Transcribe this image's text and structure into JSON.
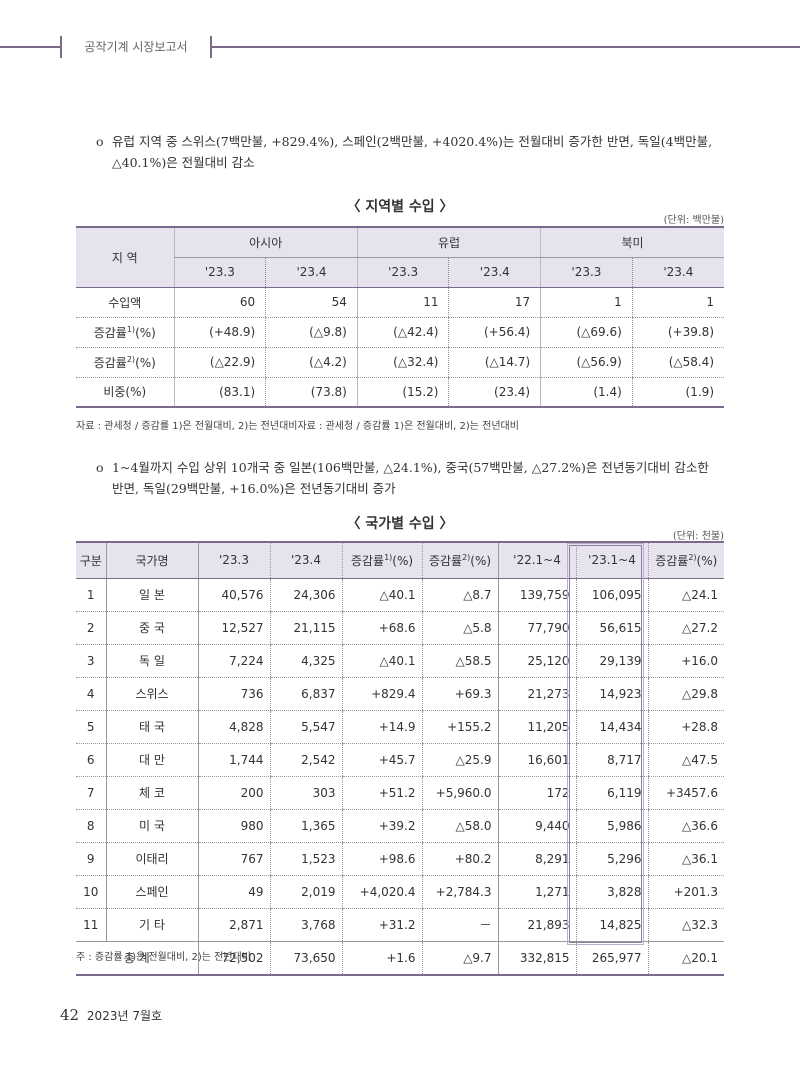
{
  "header": {
    "title": "공작기계 시장보고서"
  },
  "bullets": {
    "b1": "유럽 지역 중 스위스(7백만불, +829.4%), 스페인(2백만불, +4020.4%)는 전월대비 증가한 반면, 독일(4백만불, △40.1%)은 전월대비 감소",
    "b2": "1~4월까지 수입 상위 10개국 중 일본(106백만불, △24.1%), 중국(57백만불, △27.2%)은 전년동기대비 감소한 반면, 독일(29백만불, +16.0%)은 전년동기대비 증가",
    "mark": "o"
  },
  "region_table": {
    "title": "〈 지역별 수입 〉",
    "unit": "(단위: 백만불)",
    "corner": "지 역",
    "groups": [
      "아시아",
      "유럽",
      "북미"
    ],
    "periods": [
      "'23.3",
      "'23.4",
      "'23.3",
      "'23.4",
      "'23.3",
      "'23.4"
    ],
    "rows": [
      {
        "label": "수입액",
        "sup": "",
        "suffix": "",
        "values": [
          "60",
          "54",
          "11",
          "17",
          "1",
          "1"
        ]
      },
      {
        "label": "증감률",
        "sup": "1)",
        "suffix": "(%)",
        "values": [
          "(+48.9)",
          "(△9.8)",
          "(△42.4)",
          "(+56.4)",
          "(△69.6)",
          "(+39.8)"
        ]
      },
      {
        "label": "증감률",
        "sup": "2)",
        "suffix": "(%)",
        "values": [
          "(△22.9)",
          "(△4.2)",
          "(△32.4)",
          "(△14.7)",
          "(△56.9)",
          "(△58.4)"
        ]
      },
      {
        "label": "비중(%)",
        "sup": "",
        "suffix": "",
        "values": [
          "(83.1)",
          "(73.8)",
          "(15.2)",
          "(23.4)",
          "(1.4)",
          "(1.9)"
        ]
      }
    ],
    "source": "자료 : 관세청 / 증감률 1)은 전월대비, 2)는 전년대비자료 : 관세청 / 증감률 1)은 전월대비, 2)는 전년대비"
  },
  "country_table": {
    "title": "〈 국가별 수입 〉",
    "unit": "(단위: 천불)",
    "headers": {
      "rank": "구분",
      "country": "국가명",
      "m3": "'23.3",
      "m4": "'23.4",
      "chg1": "증감률",
      "chg1_sup": "1)",
      "chg1_suffix": "(%)",
      "chg2": "증감률",
      "chg2_sup": "2)",
      "chg2_suffix": "(%)",
      "ytd22": "'22.1~4",
      "ytd23": "'23.1~4",
      "chg3": "증감률",
      "chg3_sup": "2)",
      "chg3_suffix": "(%)"
    },
    "rows": [
      {
        "rank": "1",
        "country": "일 본",
        "m3": "40,576",
        "m4": "24,306",
        "chg1": "△40.1",
        "chg2": "△8.7",
        "ytd22": "139,759",
        "ytd23": "106,095",
        "chg3": "△24.1"
      },
      {
        "rank": "2",
        "country": "중 국",
        "m3": "12,527",
        "m4": "21,115",
        "chg1": "+68.6",
        "chg2": "△5.8",
        "ytd22": "77,790",
        "ytd23": "56,615",
        "chg3": "△27.2"
      },
      {
        "rank": "3",
        "country": "독 일",
        "m3": "7,224",
        "m4": "4,325",
        "chg1": "△40.1",
        "chg2": "△58.5",
        "ytd22": "25,120",
        "ytd23": "29,139",
        "chg3": "+16.0"
      },
      {
        "rank": "4",
        "country": "스위스",
        "m3": "736",
        "m4": "6,837",
        "chg1": "+829.4",
        "chg2": "+69.3",
        "ytd22": "21,273",
        "ytd23": "14,923",
        "chg3": "△29.8"
      },
      {
        "rank": "5",
        "country": "태 국",
        "m3": "4,828",
        "m4": "5,547",
        "chg1": "+14.9",
        "chg2": "+155.2",
        "ytd22": "11,205",
        "ytd23": "14,434",
        "chg3": "+28.8"
      },
      {
        "rank": "6",
        "country": "대 만",
        "m3": "1,744",
        "m4": "2,542",
        "chg1": "+45.7",
        "chg2": "△25.9",
        "ytd22": "16,601",
        "ytd23": "8,717",
        "chg3": "△47.5"
      },
      {
        "rank": "7",
        "country": "체 코",
        "m3": "200",
        "m4": "303",
        "chg1": "+51.2",
        "chg2": "+5,960.0",
        "ytd22": "172",
        "ytd23": "6,119",
        "chg3": "+3457.6"
      },
      {
        "rank": "8",
        "country": "미 국",
        "m3": "980",
        "m4": "1,365",
        "chg1": "+39.2",
        "chg2": "△58.0",
        "ytd22": "9,440",
        "ytd23": "5,986",
        "chg3": "△36.6"
      },
      {
        "rank": "9",
        "country": "이태리",
        "m3": "767",
        "m4": "1,523",
        "chg1": "+98.6",
        "chg2": "+80.2",
        "ytd22": "8,291",
        "ytd23": "5,296",
        "chg3": "△36.1"
      },
      {
        "rank": "10",
        "country": "스페인",
        "m3": "49",
        "m4": "2,019",
        "chg1": "+4,020.4",
        "chg2": "+2,784.3",
        "ytd22": "1,271",
        "ytd23": "3,828",
        "chg3": "+201.3"
      },
      {
        "rank": "11",
        "country": "기 타",
        "m3": "2,871",
        "m4": "3,768",
        "chg1": "+31.2",
        "chg2": "－",
        "ytd22": "21,893",
        "ytd23": "14,825",
        "chg3": "△32.3"
      }
    ],
    "total": {
      "label": "총 계",
      "m3": "72,502",
      "m4": "73,650",
      "chg1": "+1.6",
      "chg2": "△9.7",
      "ytd22": "332,815",
      "ytd23": "265,977",
      "chg3": "△20.1"
    },
    "note": "주 : 증감률 1)은 전월대비, 2)는 전년대비"
  },
  "footer": {
    "page": "42",
    "issue": "2023년 7월호"
  }
}
